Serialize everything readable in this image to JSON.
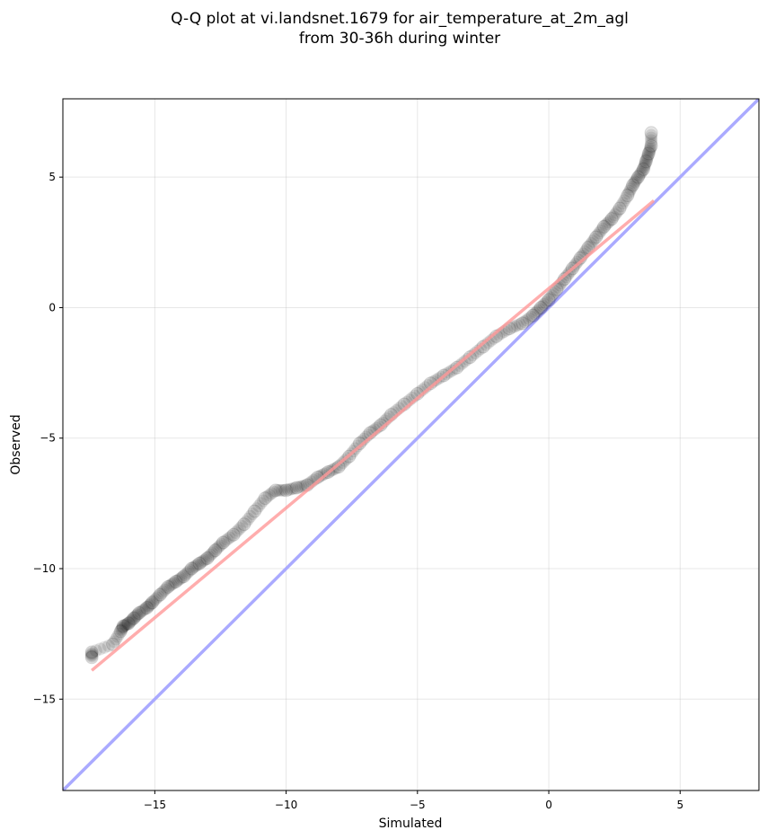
{
  "chart_data": {
    "type": "scatter",
    "title_lines": [
      "Q-Q plot at vi.landsnet.1679 for air_temperature_at_2m_agl",
      "from 30-36h during winter"
    ],
    "xlabel": "Simulated",
    "ylabel": "Observed",
    "xlim": [
      -18.5,
      8.0
    ],
    "ylim": [
      -18.5,
      8.0
    ],
    "xticks": [
      -15,
      -10,
      -5,
      0,
      5
    ],
    "yticks": [
      -15,
      -10,
      -5,
      0,
      5
    ],
    "xtick_labels": [
      "−15",
      "−10",
      "−5",
      "0",
      "5"
    ],
    "ytick_labels": [
      "−15",
      "−10",
      "−5",
      "0",
      "5"
    ],
    "grid": true,
    "series": [
      {
        "kind": "quantile_points",
        "color": "#000000",
        "x": [
          -17.4,
          -17.4,
          -16.6,
          -16.3,
          -16.2,
          -16.0,
          -15.8,
          -15.6,
          -15.3,
          -15.1,
          -14.8,
          -14.5,
          -14.2,
          -13.9,
          -13.6,
          -13.3,
          -13.0,
          -12.7,
          -12.4,
          -12.0,
          -11.6,
          -11.2,
          -10.8,
          -10.4,
          -10.0,
          -9.6,
          -9.2,
          -8.8,
          -8.4,
          -8.0,
          -7.6,
          -7.2,
          -6.8,
          -6.4,
          -6.0,
          -5.5,
          -5.0,
          -4.5,
          -4.0,
          -3.5,
          -3.0,
          -2.5,
          -2.0,
          -1.5,
          -1.0,
          -0.6,
          -0.3,
          0.0,
          0.3,
          0.6,
          0.9,
          1.2,
          1.5,
          1.8,
          2.1,
          2.4,
          2.7,
          3.0,
          3.2,
          3.4,
          3.6,
          3.7,
          3.8,
          3.9,
          3.9
        ],
        "y": [
          -13.4,
          -13.2,
          -12.9,
          -12.4,
          -12.2,
          -12.1,
          -11.9,
          -11.7,
          -11.5,
          -11.3,
          -11.0,
          -10.7,
          -10.5,
          -10.3,
          -10.0,
          -9.8,
          -9.6,
          -9.3,
          -9.0,
          -8.7,
          -8.3,
          -7.8,
          -7.3,
          -7.0,
          -7.0,
          -6.9,
          -6.8,
          -6.5,
          -6.3,
          -6.1,
          -5.7,
          -5.2,
          -4.8,
          -4.5,
          -4.1,
          -3.7,
          -3.3,
          -2.9,
          -2.6,
          -2.3,
          -1.9,
          -1.5,
          -1.1,
          -0.8,
          -0.6,
          -0.3,
          0.0,
          0.3,
          0.7,
          1.1,
          1.5,
          1.9,
          2.3,
          2.7,
          3.1,
          3.4,
          3.8,
          4.3,
          4.7,
          5.0,
          5.3,
          5.6,
          5.9,
          6.2,
          6.7
        ]
      },
      {
        "kind": "fit_line",
        "color": "#ff9999",
        "x": [
          -17.4,
          4.0
        ],
        "y": [
          -13.9,
          4.1
        ]
      },
      {
        "kind": "identity_line",
        "color": "#aaaaff",
        "x": [
          -18.5,
          8.0
        ],
        "y": [
          -18.5,
          8.0
        ]
      }
    ]
  }
}
